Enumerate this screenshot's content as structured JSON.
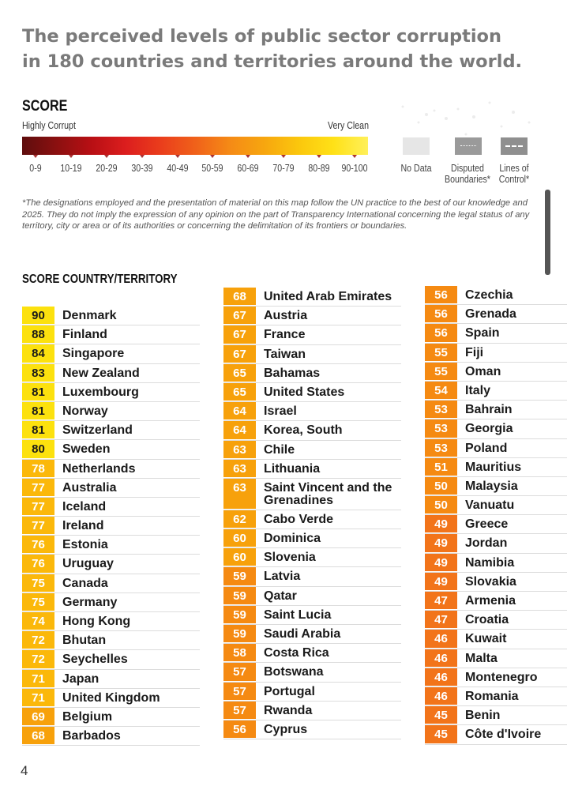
{
  "title_line1": "The perceived levels of public sector corruption",
  "title_line2": "in 180 countries and territories around the world.",
  "legend": {
    "heading": "SCORE",
    "low_label": "Highly Corrupt",
    "high_label": "Very Clean",
    "ranges": [
      "0-9",
      "10-19",
      "20-29",
      "30-39",
      "40-49",
      "50-59",
      "60-69",
      "70-79",
      "80-89",
      "90-100"
    ],
    "no_data": "No Data",
    "disputed": "Disputed Boundaries*",
    "lines_of_control": "Lines of Control*",
    "colors": {
      "no_data": "#e6e6e6",
      "disputed": "#9a9a9a",
      "lines_of_control": "#8f8f8f"
    }
  },
  "note_line1": "*The designations employed and the presentation of material on this map follow the UN practice to the best of our knowledge and",
  "note_line2": "2025. They do not imply the expression of any opinion on the part of Transparency International concerning the legal status of any",
  "note_line3": "territory, city or area or of its authorities or concerning the delimitation of its frontiers or boundaries.",
  "column_header": "SCORE COUNTRY/TERRITORY",
  "columns": [
    [
      {
        "score": "90",
        "country": "Denmark"
      },
      {
        "score": "88",
        "country": "Finland"
      },
      {
        "score": "84",
        "country": "Singapore"
      },
      {
        "score": "83",
        "country": "New Zealand"
      },
      {
        "score": "81",
        "country": "Luxembourg"
      },
      {
        "score": "81",
        "country": "Norway"
      },
      {
        "score": "81",
        "country": "Switzerland"
      },
      {
        "score": "80",
        "country": "Sweden"
      },
      {
        "score": "78",
        "country": "Netherlands"
      },
      {
        "score": "77",
        "country": "Australia"
      },
      {
        "score": "77",
        "country": "Iceland"
      },
      {
        "score": "77",
        "country": "Ireland"
      },
      {
        "score": "76",
        "country": "Estonia"
      },
      {
        "score": "76",
        "country": "Uruguay"
      },
      {
        "score": "75",
        "country": "Canada"
      },
      {
        "score": "75",
        "country": "Germany"
      },
      {
        "score": "74",
        "country": "Hong Kong"
      },
      {
        "score": "72",
        "country": "Bhutan"
      },
      {
        "score": "72",
        "country": "Seychelles"
      },
      {
        "score": "71",
        "country": "Japan"
      },
      {
        "score": "71",
        "country": "United Kingdom"
      },
      {
        "score": "69",
        "country": "Belgium"
      },
      {
        "score": "68",
        "country": "Barbados"
      }
    ],
    [
      {
        "score": "68",
        "country": "United Arab Emirates"
      },
      {
        "score": "67",
        "country": "Austria"
      },
      {
        "score": "67",
        "country": "France"
      },
      {
        "score": "67",
        "country": "Taiwan"
      },
      {
        "score": "65",
        "country": "Bahamas"
      },
      {
        "score": "65",
        "country": "United States"
      },
      {
        "score": "64",
        "country": "Israel"
      },
      {
        "score": "64",
        "country": "Korea, South"
      },
      {
        "score": "63",
        "country": "Chile"
      },
      {
        "score": "63",
        "country": "Lithuania"
      },
      {
        "score": "63",
        "country": "Saint Vincent and the Grenadines"
      },
      {
        "score": "62",
        "country": "Cabo Verde"
      },
      {
        "score": "60",
        "country": "Dominica"
      },
      {
        "score": "60",
        "country": "Slovenia"
      },
      {
        "score": "59",
        "country": "Latvia"
      },
      {
        "score": "59",
        "country": "Qatar"
      },
      {
        "score": "59",
        "country": "Saint Lucia"
      },
      {
        "score": "59",
        "country": "Saudi Arabia"
      },
      {
        "score": "58",
        "country": "Costa Rica"
      },
      {
        "score": "57",
        "country": "Botswana"
      },
      {
        "score": "57",
        "country": "Portugal"
      },
      {
        "score": "57",
        "country": "Rwanda"
      },
      {
        "score": "56",
        "country": "Cyprus"
      }
    ],
    [
      {
        "score": "56",
        "country": "Czechia"
      },
      {
        "score": "56",
        "country": "Grenada"
      },
      {
        "score": "56",
        "country": "Spain"
      },
      {
        "score": "55",
        "country": "Fiji"
      },
      {
        "score": "55",
        "country": "Oman"
      },
      {
        "score": "54",
        "country": "Italy"
      },
      {
        "score": "53",
        "country": "Bahrain"
      },
      {
        "score": "53",
        "country": "Georgia"
      },
      {
        "score": "53",
        "country": "Poland"
      },
      {
        "score": "51",
        "country": "Mauritius"
      },
      {
        "score": "50",
        "country": "Malaysia"
      },
      {
        "score": "50",
        "country": "Vanuatu"
      },
      {
        "score": "49",
        "country": "Greece"
      },
      {
        "score": "49",
        "country": "Jordan"
      },
      {
        "score": "49",
        "country": "Namibia"
      },
      {
        "score": "49",
        "country": "Slovakia"
      },
      {
        "score": "47",
        "country": "Armenia"
      },
      {
        "score": "47",
        "country": "Croatia"
      },
      {
        "score": "46",
        "country": "Kuwait"
      },
      {
        "score": "46",
        "country": "Malta"
      },
      {
        "score": "46",
        "country": "Montenegro"
      },
      {
        "score": "46",
        "country": "Romania"
      },
      {
        "score": "45",
        "country": "Benin"
      },
      {
        "score": "45",
        "country": "Côte d'Ivoire"
      }
    ]
  ],
  "page_number": "4"
}
